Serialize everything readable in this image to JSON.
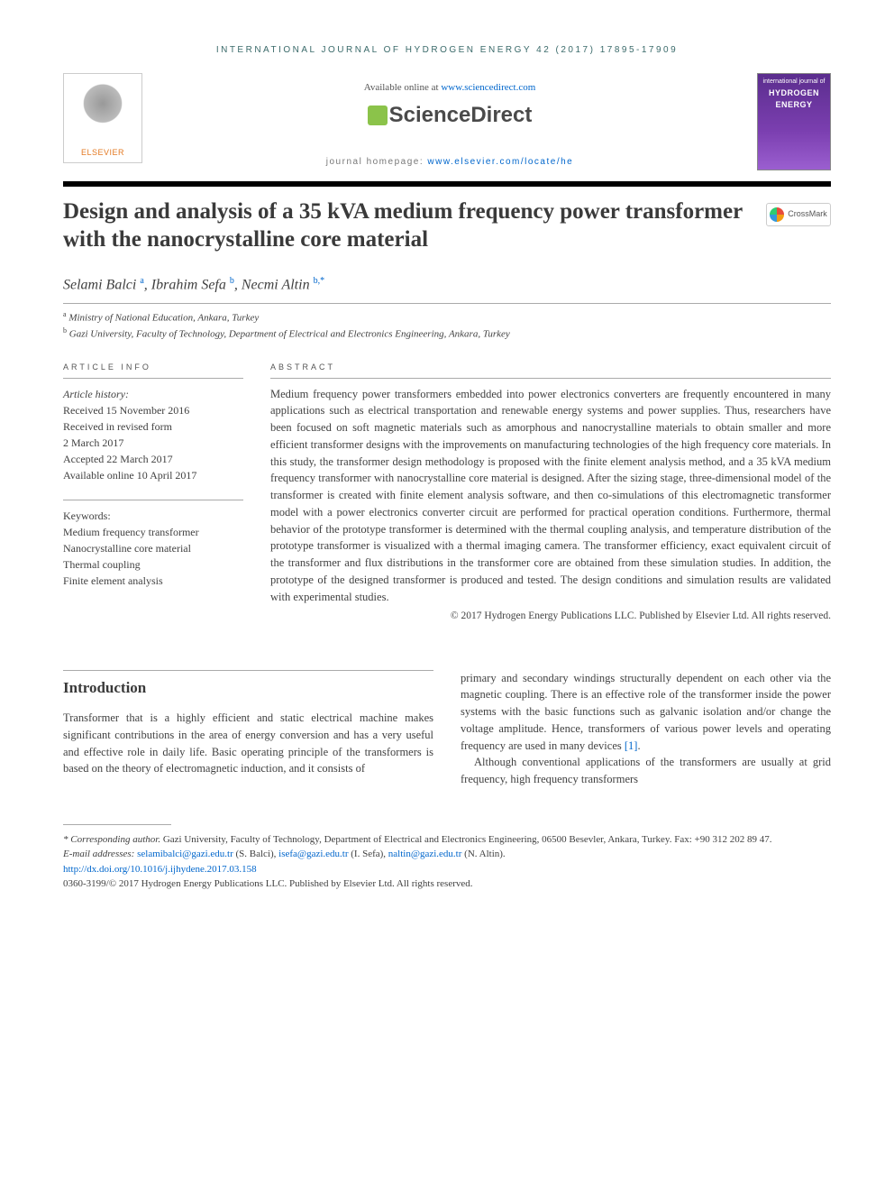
{
  "header": {
    "journal_line": "INTERNATIONAL JOURNAL OF HYDROGEN ENERGY 42 (2017) 17895-17909",
    "available_prefix": "Available online at ",
    "available_link": "www.sciencedirect.com",
    "scidirect": "ScienceDirect",
    "homepage_prefix": "journal homepage: ",
    "homepage_link": "www.elsevier.com/locate/he",
    "elsevier_label": "ELSEVIER",
    "cover_top": "international journal of",
    "cover_title": "HYDROGEN ENERGY",
    "crossmark": "CrossMark"
  },
  "title": "Design and analysis of a 35 kVA medium frequency power transformer with the nanocrystalline core material",
  "authors": {
    "a1_name": "Selami Balci",
    "a1_sup": "a",
    "a2_name": "Ibrahim Sefa",
    "a2_sup": "b",
    "a3_name": "Necmi Altin",
    "a3_sup": "b,*"
  },
  "affiliations": {
    "aff1_sup": "a",
    "aff1": " Ministry of National Education, Ankara, Turkey",
    "aff2_sup": "b",
    "aff2": " Gazi University, Faculty of Technology, Department of Electrical and Electronics Engineering, Ankara, Turkey"
  },
  "info": {
    "label": "ARTICLE INFO",
    "history_label": "Article history:",
    "h1": "Received 15 November 2016",
    "h2": "Received in revised form",
    "h3": "2 March 2017",
    "h4": "Accepted 22 March 2017",
    "h5": "Available online 10 April 2017",
    "keywords_label": "Keywords:",
    "k1": "Medium frequency transformer",
    "k2": "Nanocrystalline core material",
    "k3": "Thermal coupling",
    "k4": "Finite element analysis"
  },
  "abstract": {
    "label": "ABSTRACT",
    "text": "Medium frequency power transformers embedded into power electronics converters are frequently encountered in many applications such as electrical transportation and renewable energy systems and power supplies. Thus, researchers have been focused on soft magnetic materials such as amorphous and nanocrystalline materials to obtain smaller and more efficient transformer designs with the improvements on manufacturing technologies of the high frequency core materials. In this study, the transformer design methodology is proposed with the finite element analysis method, and a 35 kVA medium frequency transformer with nanocrystalline core material is designed. After the sizing stage, three-dimensional model of the transformer is created with finite element analysis software, and then co-simulations of this electromagnetic transformer model with a power electronics converter circuit are performed for practical operation conditions. Furthermore, thermal behavior of the prototype transformer is determined with the thermal coupling analysis, and temperature distribution of the prototype transformer is visualized with a thermal imaging camera. The transformer efficiency, exact equivalent circuit of the transformer and flux distributions in the transformer core are obtained from these simulation studies. In addition, the prototype of the designed transformer is produced and tested. The design conditions and simulation results are validated with experimental studies.",
    "copyright": "© 2017 Hydrogen Energy Publications LLC. Published by Elsevier Ltd. All rights reserved."
  },
  "intro": {
    "heading": "Introduction",
    "col1": "Transformer that is a highly efficient and static electrical machine makes significant contributions in the area of energy conversion and has a very useful and effective role in daily life. Basic operating principle of the transformers is based on the theory of electromagnetic induction, and it consists of",
    "col2_p1": "primary and secondary windings structurally dependent on each other via the magnetic coupling. There is an effective role of the transformer inside the power systems with the basic functions such as galvanic isolation and/or change the voltage amplitude. Hence, transformers of various power levels and operating frequency are used in many devices ",
    "col2_ref": "[1]",
    "col2_p1_end": ".",
    "col2_p2": "Although conventional applications of the transformers are usually at grid frequency, high frequency transformers"
  },
  "footer": {
    "corr_label": "* Corresponding author.",
    "corr_text": " Gazi University, Faculty of Technology, Department of Electrical and Electronics Engineering, 06500 Besevler, Ankara, Turkey. Fax: +90 312 202 89 47.",
    "email_label": "E-mail addresses: ",
    "e1": "selamibalci@gazi.edu.tr",
    "e1_who": " (S. Balci), ",
    "e2": "isefa@gazi.edu.tr",
    "e2_who": " (I. Sefa), ",
    "e3": "naltin@gazi.edu.tr",
    "e3_who": " (N. Altin).",
    "doi": "http://dx.doi.org/10.1016/j.ijhydene.2017.03.158",
    "issn_line": "0360-3199/© 2017 Hydrogen Energy Publications LLC. Published by Elsevier Ltd. All rights reserved."
  }
}
